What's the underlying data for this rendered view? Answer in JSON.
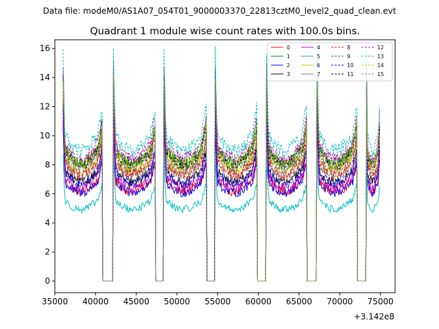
{
  "header": {
    "data_file_label": "Data file: modeM0/AS1A07_054T01_9000003370_22813cztM0_level2_quad_clean.evt"
  },
  "chart_data": {
    "type": "line",
    "title": "Quadrant 1 module wise count rates with 100.0s bins.",
    "xlabel": "",
    "ylabel": "",
    "x_offset_label": "+3.142e8",
    "xlim": [
      35000,
      76800
    ],
    "ylim": [
      -0.8,
      16.6
    ],
    "xticks": [
      35000,
      40000,
      45000,
      50000,
      55000,
      60000,
      65000,
      70000,
      75000
    ],
    "yticks": [
      0,
      2,
      4,
      6,
      8,
      10,
      12,
      14,
      16
    ],
    "legend_position": "top-right",
    "series": [
      {
        "name": "0",
        "color": "#ff0000",
        "dash": "solid",
        "level": 7.0
      },
      {
        "name": "1",
        "color": "#008000",
        "dash": "solid",
        "level": 9.2
      },
      {
        "name": "2",
        "color": "#0000ff",
        "dash": "solid",
        "level": 6.9
      },
      {
        "name": "3",
        "color": "#000000",
        "dash": "solid",
        "level": 7.7
      },
      {
        "name": "4",
        "color": "#bf00bf",
        "dash": "solid",
        "level": 7.3
      },
      {
        "name": "5",
        "color": "#00bfbf",
        "dash": "solid",
        "level": 5.6
      },
      {
        "name": "6",
        "color": "#bfbf00",
        "dash": "solid",
        "level": 8.6
      },
      {
        "name": "7",
        "color": "#808080",
        "dash": "solid",
        "level": 8.2
      },
      {
        "name": "8",
        "color": "#ff0000",
        "dash": "dashed",
        "level": 8.3
      },
      {
        "name": "9",
        "color": "#008000",
        "dash": "dashed",
        "level": 9.3
      },
      {
        "name": "10",
        "color": "#0000ff",
        "dash": "dashed",
        "level": 7.6
      },
      {
        "name": "11",
        "color": "#000000",
        "dash": "dashed",
        "level": 9.0
      },
      {
        "name": "12",
        "color": "#bf00bf",
        "dash": "dashed",
        "level": 9.6
      },
      {
        "name": "13",
        "color": "#00bfbf",
        "dash": "dashed",
        "level": 10.2
      },
      {
        "name": "14",
        "color": "#bfbf00",
        "dash": "dashed",
        "level": 9.1
      },
      {
        "name": "15",
        "color": "#808080",
        "dash": "dashed",
        "level": 8.8
      }
    ],
    "orbit_segments": [
      {
        "start": 36000,
        "end": 40800
      },
      {
        "start": 42200,
        "end": 47300
      },
      {
        "start": 48400,
        "end": 53600
      },
      {
        "start": 54700,
        "end": 59800
      },
      {
        "start": 61000,
        "end": 65900
      },
      {
        "start": 67200,
        "end": 72100
      },
      {
        "start": 73300,
        "end": 74900
      }
    ],
    "gaps_value": 0,
    "bin_seconds": 100.0
  }
}
